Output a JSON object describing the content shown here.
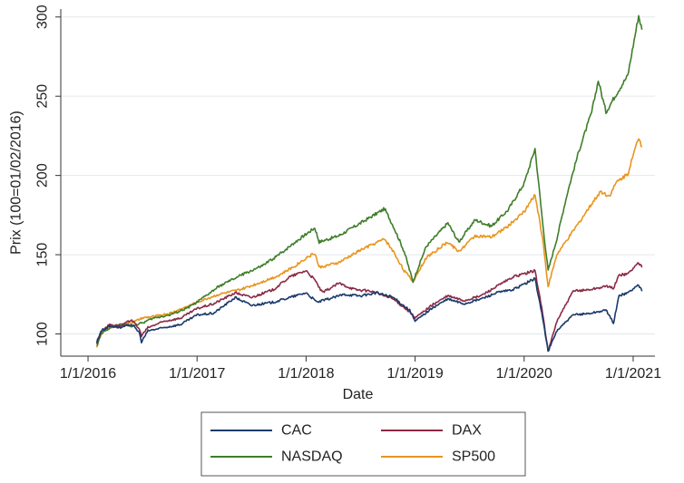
{
  "chart_data": {
    "type": "line",
    "title": "",
    "xlabel": "Date",
    "ylabel": "Prix (100=01/02/2016)",
    "x_ticks": [
      "1/1/2016",
      "1/1/2017",
      "1/1/2018",
      "1/1/2019",
      "1/1/2020",
      "1/1/2021"
    ],
    "x_tick_values": [
      2016.0,
      2017.0,
      2018.0,
      2019.0,
      2020.0,
      2021.0
    ],
    "y_ticks": [
      "100",
      "150",
      "200",
      "250",
      "300"
    ],
    "y_tick_values": [
      100,
      150,
      200,
      250,
      300
    ],
    "xlim": [
      2015.75,
      2021.2
    ],
    "ylim": [
      86,
      305
    ],
    "grid": true,
    "legend_position": "bottom",
    "colors": {
      "CAC": "#1b3a6b",
      "DAX": "#8b2a45",
      "NASDAQ": "#3f7d2a",
      "SP500": "#e8951e"
    },
    "series": [
      {
        "name": "CAC",
        "x": [
          2016.08,
          2016.12,
          2016.2,
          2016.3,
          2016.4,
          2016.47,
          2016.49,
          2016.55,
          2016.7,
          2016.85,
          2017.0,
          2017.15,
          2017.35,
          2017.5,
          2017.7,
          2017.85,
          2018.0,
          2018.1,
          2018.2,
          2018.35,
          2018.5,
          2018.65,
          2018.8,
          2018.95,
          2019.0,
          2019.15,
          2019.3,
          2019.45,
          2019.6,
          2019.75,
          2019.9,
          2020.1,
          2020.17,
          2020.22,
          2020.3,
          2020.45,
          2020.6,
          2020.75,
          2020.82,
          2020.87,
          2020.95,
          2021.05,
          2021.08
        ],
        "y": [
          94,
          102,
          105,
          104,
          106,
          101,
          95,
          102,
          104,
          106,
          112,
          113,
          123,
          118,
          120,
          123,
          126,
          120,
          122,
          125,
          124,
          126,
          123,
          115,
          108,
          116,
          122,
          119,
          122,
          126,
          128,
          135,
          110,
          89,
          102,
          112,
          113,
          115,
          107,
          124,
          126,
          131,
          127
        ]
      },
      {
        "name": "DAX",
        "x": [
          2016.08,
          2016.12,
          2016.2,
          2016.3,
          2016.4,
          2016.47,
          2016.49,
          2016.55,
          2016.7,
          2016.85,
          2017.0,
          2017.15,
          2017.35,
          2017.5,
          2017.7,
          2017.85,
          2018.0,
          2018.08,
          2018.15,
          2018.3,
          2018.45,
          2018.6,
          2018.8,
          2018.95,
          2019.0,
          2019.15,
          2019.3,
          2019.45,
          2019.6,
          2019.75,
          2019.9,
          2020.1,
          2020.17,
          2020.22,
          2020.3,
          2020.45,
          2020.6,
          2020.75,
          2020.82,
          2020.87,
          2020.95,
          2021.05,
          2021.08
        ],
        "y": [
          95,
          102,
          106,
          105,
          109,
          103,
          99,
          104,
          108,
          110,
          116,
          119,
          126,
          123,
          128,
          136,
          140,
          134,
          126,
          132,
          128,
          127,
          122,
          114,
          110,
          118,
          124,
          121,
          124,
          130,
          136,
          140,
          113,
          89,
          108,
          127,
          128,
          130,
          129,
          137,
          138,
          145,
          142
        ]
      },
      {
        "name": "NASDAQ",
        "x": [
          2016.08,
          2016.12,
          2016.2,
          2016.3,
          2016.4,
          2016.5,
          2016.6,
          2016.75,
          2016.9,
          2017.0,
          2017.2,
          2017.4,
          2017.6,
          2017.75,
          2017.9,
          2018.0,
          2018.08,
          2018.12,
          2018.3,
          2018.5,
          2018.72,
          2018.8,
          2018.9,
          2018.98,
          2019.1,
          2019.3,
          2019.4,
          2019.55,
          2019.7,
          2019.85,
          2020.0,
          2020.1,
          2020.17,
          2020.22,
          2020.3,
          2020.4,
          2020.5,
          2020.62,
          2020.68,
          2020.75,
          2020.85,
          2020.95,
          2021.05,
          2021.08
        ],
        "y": [
          92,
          100,
          104,
          106,
          105,
          107,
          110,
          112,
          116,
          120,
          130,
          137,
          143,
          150,
          158,
          163,
          167,
          158,
          162,
          170,
          179,
          168,
          152,
          133,
          155,
          170,
          158,
          172,
          168,
          178,
          195,
          217,
          170,
          140,
          160,
          190,
          215,
          240,
          260,
          240,
          252,
          263,
          301,
          292
        ]
      },
      {
        "name": "SP500",
        "x": [
          2016.08,
          2016.12,
          2016.2,
          2016.3,
          2016.4,
          2016.5,
          2016.6,
          2016.75,
          2016.9,
          2017.0,
          2017.2,
          2017.4,
          2017.6,
          2017.75,
          2017.9,
          2018.0,
          2018.08,
          2018.12,
          2018.3,
          2018.5,
          2018.72,
          2018.8,
          2018.9,
          2018.98,
          2019.1,
          2019.3,
          2019.4,
          2019.55,
          2019.7,
          2019.85,
          2020.0,
          2020.1,
          2020.17,
          2020.22,
          2020.3,
          2020.45,
          2020.6,
          2020.7,
          2020.78,
          2020.85,
          2020.95,
          2021.05,
          2021.08
        ],
        "y": [
          92,
          100,
          104,
          106,
          107,
          110,
          111,
          113,
          117,
          120,
          125,
          128,
          133,
          137,
          143,
          148,
          151,
          142,
          145,
          153,
          160,
          152,
          140,
          133,
          148,
          158,
          152,
          162,
          161,
          168,
          177,
          188,
          160,
          130,
          150,
          165,
          180,
          190,
          187,
          196,
          201,
          224,
          218
        ]
      }
    ]
  }
}
